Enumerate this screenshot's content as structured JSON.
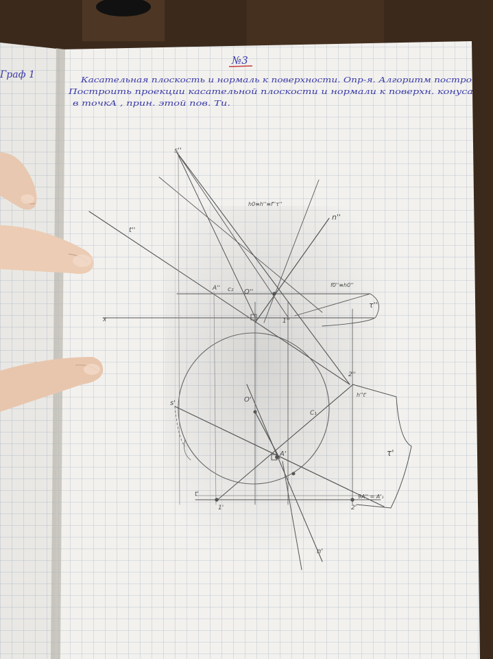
{
  "photo": {
    "subject": "graph-paper notebook with a pencil geometry construction",
    "colors": {
      "table": "#3b2a1c",
      "paper": "#f2f1ee",
      "grid": "#9aa7bd",
      "ink": "#3a3aa8",
      "pencil": "#555555",
      "skin": "#e8c8b0"
    }
  },
  "page": {
    "heading": "№3",
    "margin_note": "Граф 1",
    "text_lines": [
      "Касательная плоскость и нормаль к поверхности. Опр-я. Алгоритм постро",
      "Построить проекции касательной плоскости и нормали к поверхн. конуса",
      "в точкA , прин. этой пов. Ти."
    ]
  },
  "drawing_labels": {
    "s2": "s''",
    "n2": "n''",
    "t2": "t''",
    "a2": "A''",
    "o2": "O''",
    "c2": "c₂",
    "one2": "1''",
    "two2": "2''",
    "tau2": "τ''",
    "f0": "f0''≡h0''",
    "eq_top": "ℎ0≡ℎ''≡f''τ''",
    "x": "x",
    "s1": "s'",
    "o1": "O'",
    "c1": "C₁",
    "a1": "A'",
    "one1": "1'",
    "two1": "2'",
    "tau1": "τ'",
    "h1": "h''t'",
    "eq_bottom": "9A'' = A'₁",
    "n1": "n'",
    "t1": "t'"
  }
}
